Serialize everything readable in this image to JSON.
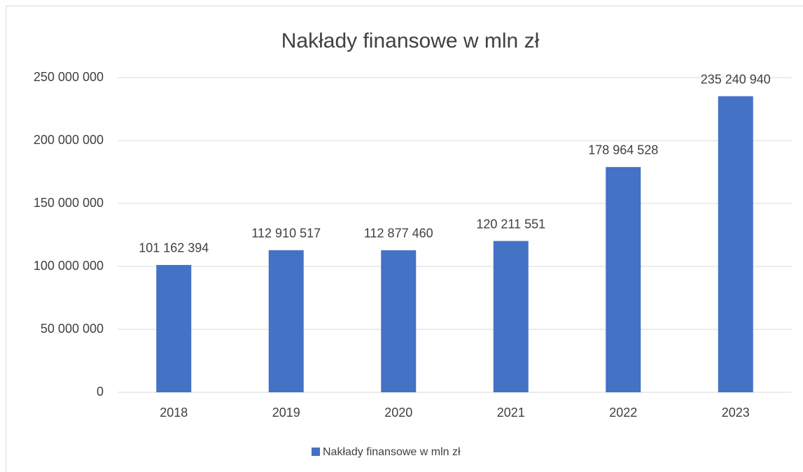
{
  "chart_data": {
    "type": "bar",
    "title": "Nakłady finansowe w mln zł",
    "categories": [
      "2018",
      "2019",
      "2020",
      "2021",
      "2022",
      "2023"
    ],
    "series": [
      {
        "name": "Nakłady finansowe w mln zł",
        "color": "#4472c4",
        "values": [
          101162394,
          112910517,
          112877460,
          120211551,
          178964528,
          235240940
        ],
        "value_labels": [
          "101 162 394",
          "112 910 517",
          "112 877 460",
          "120 211 551",
          "178 964 528",
          "235 240 940"
        ]
      }
    ],
    "ylim": [
      0,
      250000000
    ],
    "yticks": [
      0,
      {
        "value": 50000000,
        "label": "50 000 000"
      },
      {
        "value": 100000000,
        "label": "100 000 000"
      },
      {
        "value": 150000000,
        "label": "150 000 000"
      },
      {
        "value": 200000000,
        "label": "200 000 000"
      },
      {
        "value": 250000000,
        "label": "250 000 000"
      }
    ],
    "grid": true,
    "legend": "bottom"
  }
}
